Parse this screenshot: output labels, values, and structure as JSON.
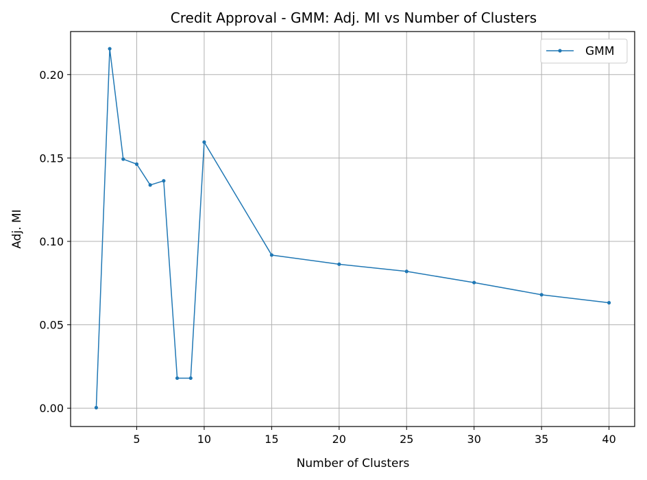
{
  "chart_data": {
    "type": "line",
    "title": "Credit Approval - GMM: Adj. MI vs Number of Clusters",
    "xlabel": "Number of Clusters",
    "ylabel": "Adj. MI",
    "xlim": [
      0.1,
      41.9
    ],
    "ylim": [
      -0.011,
      0.2258
    ],
    "x_ticks": [
      5,
      10,
      15,
      20,
      25,
      30,
      35,
      40
    ],
    "x_tick_labels": [
      "5",
      "10",
      "15",
      "20",
      "25",
      "30",
      "35",
      "40"
    ],
    "y_ticks": [
      0.0,
      0.05,
      0.1,
      0.15,
      0.2
    ],
    "y_tick_labels": [
      "0.00",
      "0.05",
      "0.10",
      "0.15",
      "0.20"
    ],
    "grid": true,
    "legend_position": "top-right",
    "series": [
      {
        "name": "GMM",
        "color": "#1f77b4",
        "x": [
          2,
          3,
          4,
          5,
          6,
          7,
          8,
          9,
          10,
          15,
          20,
          25,
          30,
          35,
          40
        ],
        "y": [
          0.0003,
          0.2155,
          0.1493,
          0.1463,
          0.1338,
          0.1363,
          0.018,
          0.018,
          0.1595,
          0.0918,
          0.0863,
          0.082,
          0.0753,
          0.068,
          0.0632
        ]
      }
    ]
  }
}
